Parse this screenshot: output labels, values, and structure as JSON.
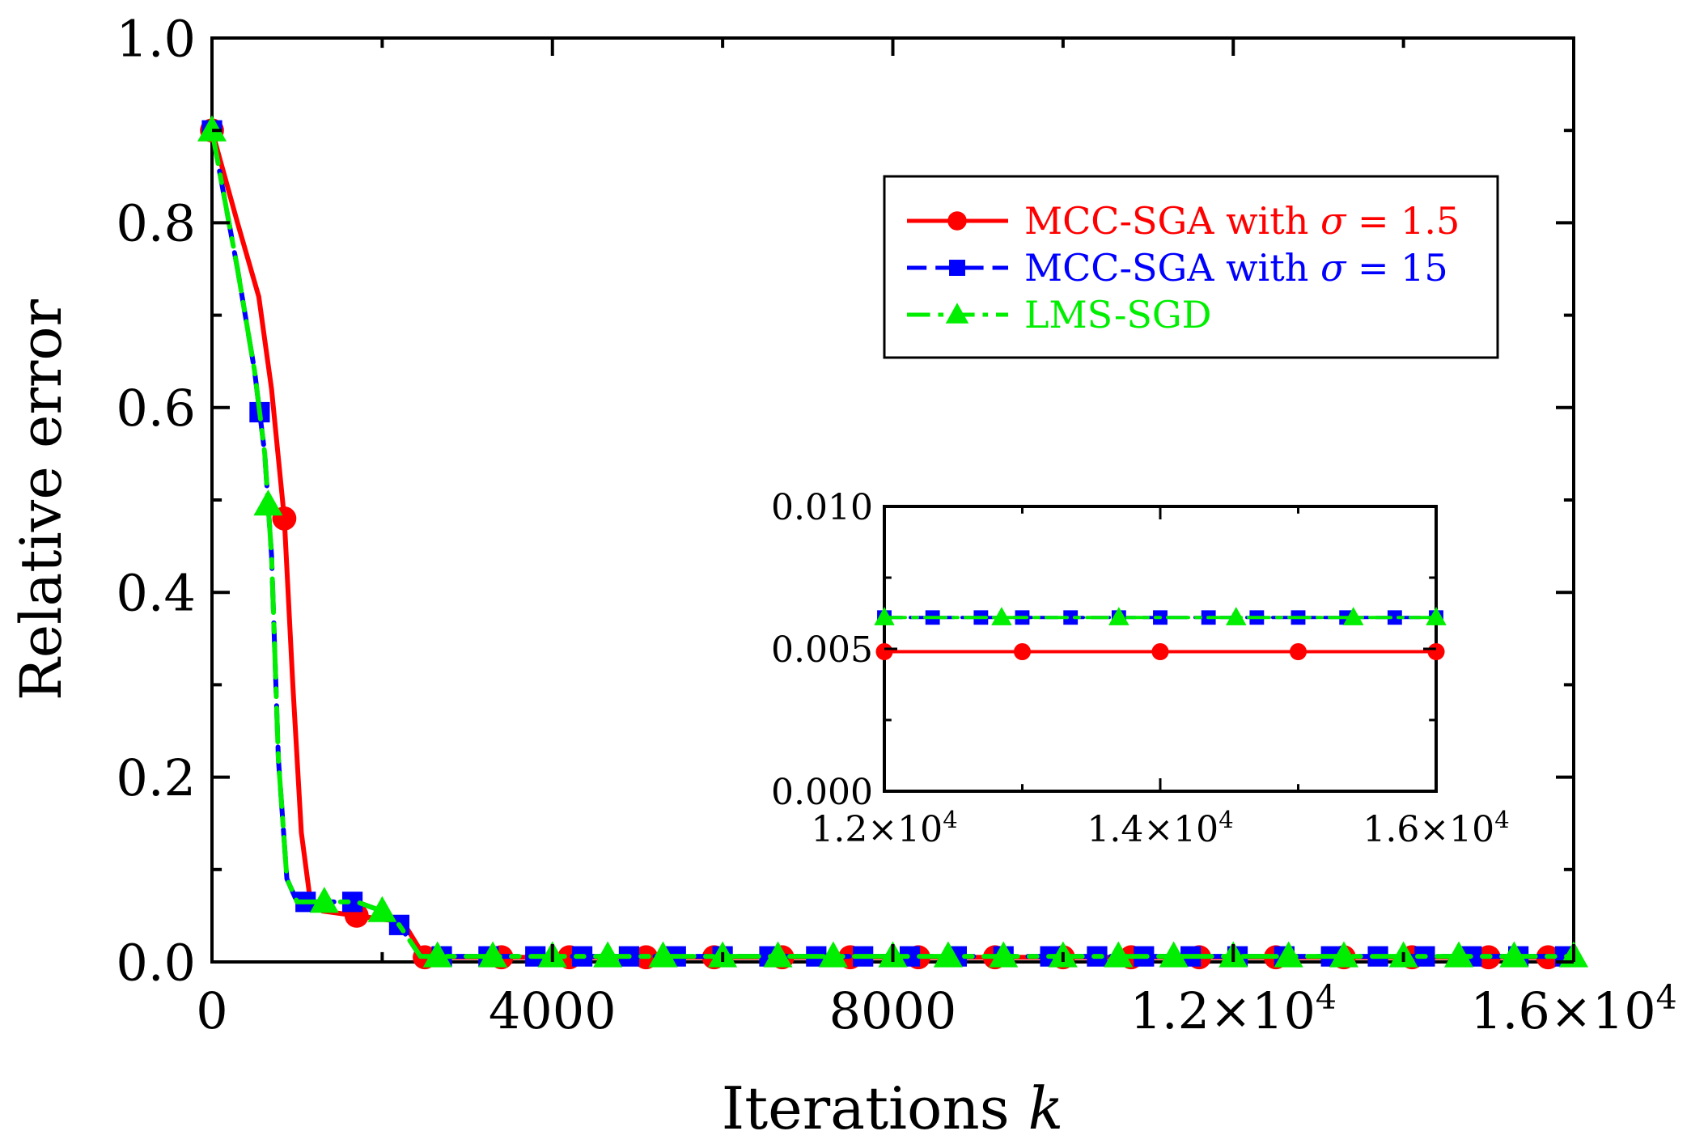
{
  "chart_data": [
    {
      "id": "main",
      "type": "line",
      "title": "",
      "xlabel": "Iterations",
      "xlabel_var": "k",
      "ylabel": "Relative error",
      "xlim": [
        0,
        16000
      ],
      "ylim": [
        0,
        1.0
      ],
      "xticks": [
        {
          "value": 0,
          "label": "0"
        },
        {
          "value": 4000,
          "label": "4000"
        },
        {
          "value": 8000,
          "label": "8000"
        },
        {
          "value": 12000,
          "mant": "1.2",
          "exp": "4"
        },
        {
          "value": 16000,
          "mant": "1.6",
          "exp": "4"
        }
      ],
      "yticks": [
        {
          "value": 0.0,
          "label": "0.0"
        },
        {
          "value": 0.2,
          "label": "0.2"
        },
        {
          "value": 0.4,
          "label": "0.4"
        },
        {
          "value": 0.6,
          "label": "0.6"
        },
        {
          "value": 0.8,
          "label": "0.8"
        },
        {
          "value": 1.0,
          "label": "1.0"
        }
      ],
      "legend_position": "top-right",
      "series": [
        {
          "name": "MCC-SGA with σ = 1.5",
          "label_text": "MCC-SGA with ",
          "label_sym": "σ",
          "label_val": " = 1.5",
          "color": "#ff0000",
          "marker": "circle",
          "dash": "solid",
          "x": [
            0,
            300,
            550,
            700,
            850,
            950,
            1050,
            1150,
            1300,
            1700,
            2100,
            2300,
            2500,
            3000,
            16000
          ],
          "y": [
            0.9,
            0.8,
            0.72,
            0.62,
            0.48,
            0.3,
            0.14,
            0.07,
            0.055,
            0.05,
            0.045,
            0.035,
            0.005,
            0.005,
            0.005
          ],
          "marker_x": [
            0,
            850,
            1700,
            2500,
            3400,
            4200,
            5100,
            5900,
            6700,
            7500,
            8300,
            9200,
            10000,
            10800,
            11600,
            12500,
            13300,
            14100,
            15000,
            15700
          ]
        },
        {
          "name": "MCC-SGA with σ = 15",
          "label_text": "MCC-SGA with ",
          "label_sym": "σ",
          "label_val": " = 15",
          "color": "#0000ff",
          "marker": "square",
          "dash": "dashed",
          "x": [
            0,
            300,
            500,
            620,
            700,
            780,
            880,
            1000,
            1300,
            1700,
            2000,
            2200,
            2450,
            3000,
            16000
          ],
          "y": [
            0.9,
            0.75,
            0.64,
            0.55,
            0.44,
            0.22,
            0.09,
            0.065,
            0.065,
            0.065,
            0.055,
            0.04,
            0.006,
            0.006,
            0.006
          ],
          "marker_x": [
            0,
            560,
            1100,
            1650,
            2200,
            2700,
            3250,
            3800,
            4350,
            4900,
            5450,
            6000,
            6550,
            7100,
            7650,
            8200,
            8750,
            9300,
            9850,
            10400,
            10950,
            11500,
            12050,
            12600,
            13150,
            13700,
            14250,
            14800,
            15350,
            15900
          ]
        },
        {
          "name": "LMS-SGD",
          "label_text": "LMS-SGD",
          "label_sym": "",
          "label_val": "",
          "color": "#00ee00",
          "marker": "triangle",
          "dash": "dashdot",
          "x": [
            0,
            300,
            500,
            620,
            700,
            780,
            880,
            1000,
            1300,
            1700,
            2000,
            2200,
            2450,
            3000,
            16000
          ],
          "y": [
            0.9,
            0.75,
            0.64,
            0.55,
            0.44,
            0.22,
            0.09,
            0.065,
            0.065,
            0.065,
            0.055,
            0.04,
            0.006,
            0.006,
            0.006
          ],
          "marker_x": [
            0,
            660,
            1320,
            2000,
            2650,
            3300,
            4000,
            4650,
            5300,
            6000,
            6650,
            7300,
            8000,
            8650,
            9300,
            10000,
            10650,
            11300,
            12000,
            12650,
            13300,
            14000,
            14650,
            15300,
            16000
          ]
        }
      ]
    },
    {
      "id": "inset",
      "type": "line",
      "title": "",
      "xlim": [
        12000,
        16000
      ],
      "ylim": [
        0.0,
        0.01
      ],
      "xticks": [
        {
          "value": 12000,
          "mant": "1.2",
          "exp": "4"
        },
        {
          "value": 14000,
          "mant": "1.4",
          "exp": "4"
        },
        {
          "value": 16000,
          "mant": "1.6",
          "exp": "4"
        }
      ],
      "yticks": [
        {
          "value": 0.0,
          "label": "0.000"
        },
        {
          "value": 0.005,
          "label": "0.005"
        },
        {
          "value": 0.01,
          "label": "0.010"
        }
      ],
      "series": [
        {
          "name": "MCC-SGA with σ = 1.5",
          "color": "#ff0000",
          "marker": "circle",
          "dash": "solid",
          "x": [
            12000,
            16000
          ],
          "y": [
            0.0049,
            0.0049
          ],
          "marker_x": [
            12000,
            13000,
            14000,
            15000,
            16000
          ]
        },
        {
          "name": "MCC-SGA with σ = 15",
          "color": "#0000ff",
          "marker": "square",
          "dash": "dashed",
          "x": [
            12000,
            16000
          ],
          "y": [
            0.0061,
            0.0061
          ],
          "marker_x": [
            12000,
            12350,
            12700,
            13000,
            13350,
            13700,
            14000,
            14350,
            14700,
            15000,
            15350,
            15700,
            16000
          ]
        },
        {
          "name": "LMS-SGD",
          "color": "#00ee00",
          "marker": "triangle",
          "dash": "dashdot",
          "x": [
            12000,
            16000
          ],
          "y": [
            0.0061,
            0.0061
          ],
          "marker_x": [
            12000,
            12850,
            13700,
            14550,
            15400,
            16000
          ]
        }
      ]
    }
  ]
}
